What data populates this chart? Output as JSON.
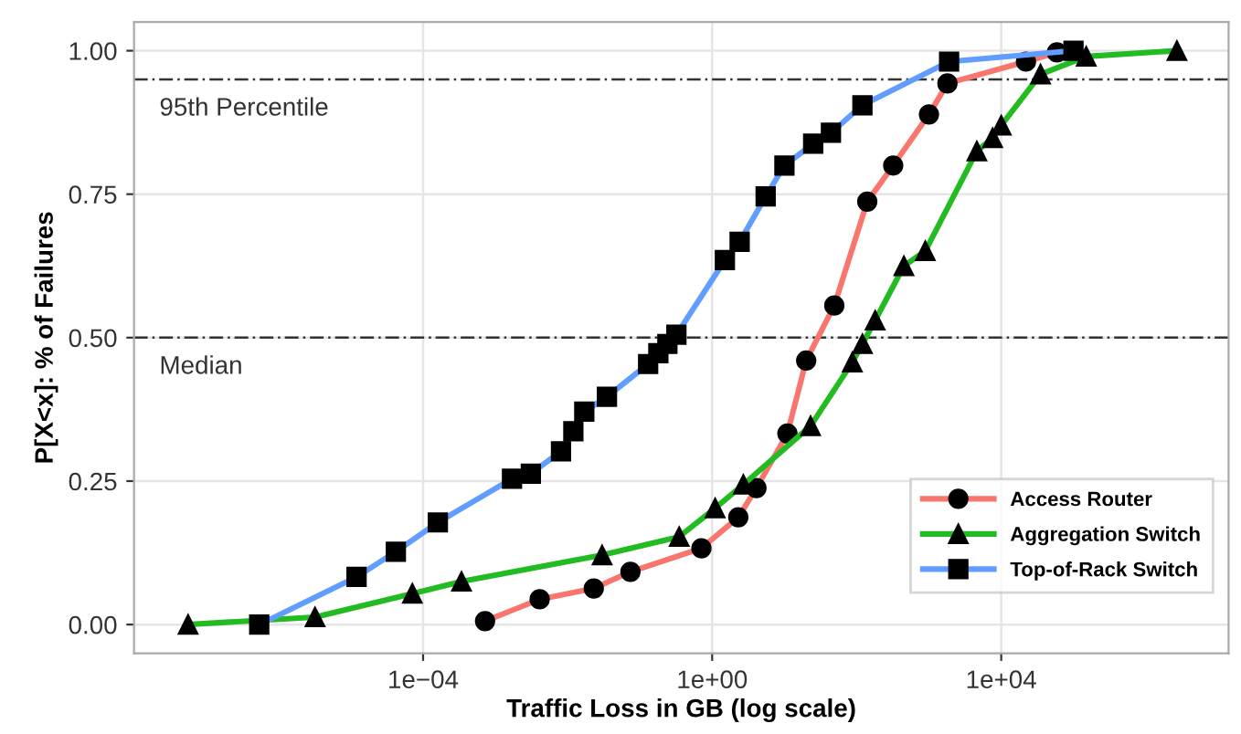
{
  "chart_data": {
    "type": "line",
    "xlabel": "Traffic Loss in GB (log scale)",
    "ylabel": "P[X<x]: % of Failures",
    "log": "x",
    "xlim": [
      1e-08,
      14000000.0
    ],
    "ylim": [
      -0.05,
      1.05
    ],
    "xticks": [
      {
        "value": 0.0001,
        "label": "1e−04"
      },
      {
        "value": 1,
        "label": "1e+00"
      },
      {
        "value": 10000,
        "label": "1e+04"
      }
    ],
    "yticks": [
      {
        "value": 0,
        "label": "0.00"
      },
      {
        "value": 0.25,
        "label": "0.25"
      },
      {
        "value": 0.5,
        "label": "0.50"
      },
      {
        "value": 0.75,
        "label": "0.75"
      },
      {
        "value": 1,
        "label": "1.00"
      }
    ],
    "grid": true,
    "legend": "bottom right",
    "ref_lines": [
      {
        "axis": "y",
        "value": 0.95,
        "label": "95th Percentile",
        "line_style": "dashed",
        "color": "#333333"
      },
      {
        "axis": "y",
        "value": 0.5,
        "label": "Median",
        "line_style": "dashed",
        "color": "#333333"
      }
    ],
    "series": [
      {
        "name": "Access Router",
        "color": "#f8766d",
        "marker": "circle",
        "x": [
          0.00072,
          0.0041,
          0.023,
          0.074,
          0.71,
          2.3,
          4.1,
          11,
          20,
          49,
          140,
          320,
          1000,
          1800,
          22000,
          59000
        ],
        "values": [
          0.006,
          0.044,
          0.063,
          0.092,
          0.133,
          0.187,
          0.238,
          0.333,
          0.46,
          0.556,
          0.737,
          0.8,
          0.889,
          0.943,
          0.981,
          0.997
        ]
      },
      {
        "name": "Aggregation Switch",
        "color": "#22bb22",
        "marker": "triangle",
        "x": [
          5.6e-08,
          3.2e-06,
          7.1e-05,
          0.00034,
          0.03,
          0.35,
          1.1,
          2.7,
          23,
          87,
          120,
          180,
          450,
          890,
          4600,
          7600,
          10000,
          35000,
          150000,
          2700000.0
        ],
        "values": [
          0,
          0.013,
          0.054,
          0.075,
          0.121,
          0.153,
          0.203,
          0.244,
          0.346,
          0.457,
          0.489,
          0.53,
          0.625,
          0.651,
          0.825,
          0.848,
          0.87,
          0.959,
          0.99,
          1.0
        ]
      },
      {
        "name": "Top-of-Rack Switch",
        "color": "#619cff",
        "marker": "square",
        "x": [
          5.4e-07,
          1.2e-05,
          4.2e-05,
          0.00016,
          0.0017,
          0.0031,
          0.0081,
          0.012,
          0.017,
          0.035,
          0.13,
          0.18,
          0.24,
          0.32,
          1.5,
          2.4,
          5.5,
          10,
          25,
          44,
          120,
          1900,
          100000
        ],
        "values": [
          0,
          0.083,
          0.127,
          0.178,
          0.254,
          0.263,
          0.302,
          0.337,
          0.371,
          0.397,
          0.454,
          0.473,
          0.489,
          0.505,
          0.635,
          0.667,
          0.746,
          0.8,
          0.838,
          0.857,
          0.905,
          0.981,
          1.0
        ]
      }
    ]
  }
}
